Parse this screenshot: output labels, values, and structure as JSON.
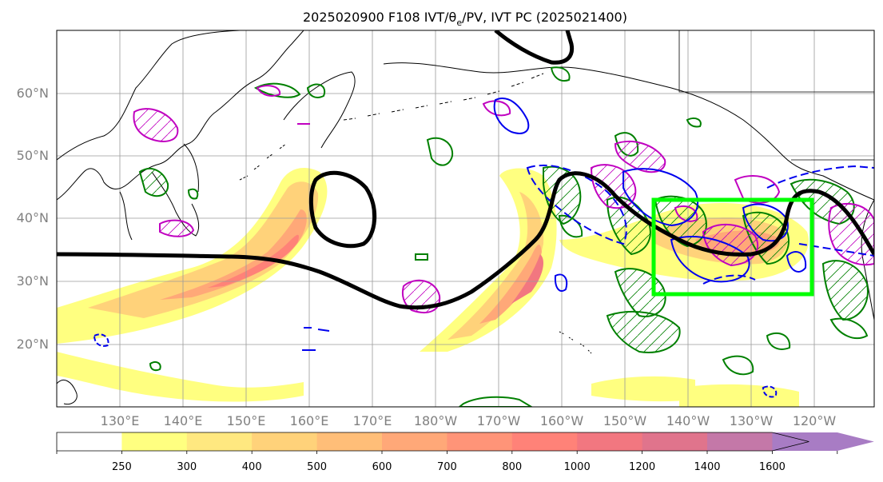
{
  "title": "2025020900 F108 IVT/θ",
  "title_sub": "e",
  "title_tail": "/PV, IVT PC (2025021400)",
  "map": {
    "lat_labels": [
      "60°N",
      "50°N",
      "40°N",
      "30°N",
      "20°N"
    ],
    "lon_labels": [
      "130°E",
      "140°E",
      "150°E",
      "160°E",
      "170°E",
      "180°W",
      "170°W",
      "160°W",
      "150°W",
      "140°W",
      "130°W",
      "120°W"
    ],
    "highlight_box": {
      "lon": [
        -145,
        -120
      ],
      "lat": [
        28,
        43
      ],
      "color": "#00ff00"
    },
    "contour_colors": {
      "thick": "#000000",
      "theta_e": "#008000",
      "pv_pos": "#c000c0",
      "pv_neg": "#0000ee"
    }
  },
  "colorbar": {
    "levels": [
      "250",
      "300",
      "400",
      "500",
      "600",
      "700",
      "800",
      "1000",
      "1200",
      "1400",
      "1600"
    ],
    "colors": [
      "#ffff80",
      "#ffe880",
      "#ffd27a",
      "#ffbe78",
      "#ffa878",
      "#ff9478",
      "#ff8278",
      "#f27780",
      "#e0748c",
      "#c478a8",
      "#a87cc4"
    ]
  }
}
